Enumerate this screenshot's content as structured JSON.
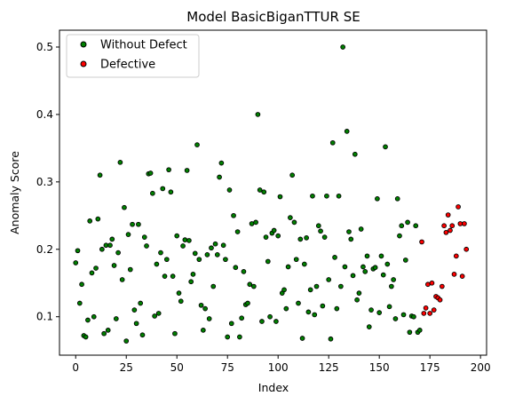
{
  "chart_data": {
    "type": "scatter",
    "title": "Model BasicBiganTTUR SE",
    "xlabel": "Index",
    "ylabel": "Anomaly Score",
    "xlim": [
      -8,
      203
    ],
    "ylim": [
      0.043,
      0.525
    ],
    "xticks": [
      0,
      25,
      50,
      75,
      100,
      125,
      150,
      175,
      200
    ],
    "yticks": [
      0.1,
      0.2,
      0.3,
      0.4,
      0.5
    ],
    "tick_labels_x": [
      "0",
      "25",
      "50",
      "75",
      "100",
      "125",
      "150",
      "175",
      "200"
    ],
    "tick_labels_y": [
      "0.1",
      "0.2",
      "0.3",
      "0.4",
      "0.5"
    ],
    "grid": false,
    "legend_position": "upper-left",
    "series": [
      {
        "name": "Without Defect",
        "color": "#008000",
        "edgecolor": "#000000",
        "x": [
          0,
          1,
          2,
          3,
          4,
          5,
          6,
          7,
          8,
          9,
          10,
          11,
          12,
          13,
          14,
          15,
          16,
          17,
          18,
          19,
          20,
          21,
          22,
          23,
          24,
          25,
          26,
          27,
          28,
          29,
          30,
          31,
          32,
          33,
          34,
          35,
          36,
          37,
          38,
          39,
          40,
          41,
          42,
          43,
          44,
          45,
          46,
          47,
          48,
          49,
          50,
          51,
          52,
          53,
          54,
          55,
          56,
          57,
          58,
          59,
          60,
          61,
          62,
          63,
          64,
          65,
          66,
          67,
          68,
          69,
          70,
          71,
          72,
          73,
          74,
          75,
          76,
          77,
          78,
          79,
          80,
          81,
          82,
          83,
          84,
          85,
          86,
          87,
          88,
          89,
          90,
          91,
          92,
          93,
          94,
          95,
          96,
          97,
          98,
          99,
          100,
          101,
          102,
          103,
          104,
          105,
          106,
          107,
          108,
          109,
          110,
          111,
          112,
          113,
          114,
          115,
          116,
          117,
          118,
          119,
          120,
          121,
          122,
          123,
          124,
          125,
          126,
          127,
          128,
          129,
          130,
          131,
          132,
          133,
          134,
          135,
          136,
          137,
          138,
          139,
          140,
          141,
          142,
          143,
          144,
          145,
          146,
          147,
          148,
          149,
          150,
          151,
          152,
          153,
          154,
          155,
          156,
          157,
          158,
          159,
          160,
          161,
          162,
          163,
          164,
          165,
          166,
          167,
          168,
          169,
          170
        ],
        "y": [
          0.18,
          0.198,
          0.12,
          0.148,
          0.072,
          0.07,
          0.095,
          0.242,
          0.165,
          0.1,
          0.172,
          0.245,
          0.31,
          0.2,
          0.075,
          0.206,
          0.08,
          0.206,
          0.215,
          0.176,
          0.097,
          0.195,
          0.329,
          0.155,
          0.262,
          0.064,
          0.222,
          0.17,
          0.237,
          0.11,
          0.09,
          0.237,
          0.12,
          0.073,
          0.218,
          0.205,
          0.312,
          0.313,
          0.283,
          0.101,
          0.178,
          0.105,
          0.195,
          0.29,
          0.16,
          0.185,
          0.318,
          0.285,
          0.16,
          0.075,
          0.22,
          0.135,
          0.123,
          0.205,
          0.214,
          0.317,
          0.213,
          0.152,
          0.163,
          0.194,
          0.355,
          0.185,
          0.117,
          0.08,
          0.112,
          0.192,
          0.097,
          0.202,
          0.145,
          0.208,
          0.192,
          0.307,
          0.328,
          0.206,
          0.185,
          0.07,
          0.288,
          0.09,
          0.25,
          0.173,
          0.226,
          0.07,
          0.098,
          0.167,
          0.118,
          0.12,
          0.148,
          0.238,
          0.145,
          0.24,
          0.4,
          0.288,
          0.093,
          0.285,
          0.218,
          0.182,
          0.1,
          0.224,
          0.228,
          0.093,
          0.22,
          0.278,
          0.135,
          0.14,
          0.112,
          0.174,
          0.247,
          0.31,
          0.24,
          0.185,
          0.12,
          0.215,
          0.068,
          0.178,
          0.217,
          0.107,
          0.14,
          0.279,
          0.103,
          0.145,
          0.235,
          0.227,
          0.116,
          0.218,
          0.279,
          0.155,
          0.067,
          0.358,
          0.188,
          0.112,
          0.279,
          0.145,
          0.5,
          0.174,
          0.375,
          0.226,
          0.215,
          0.161,
          0.341,
          0.125,
          0.135,
          0.23,
          0.174,
          0.167,
          0.19,
          0.085,
          0.11,
          0.171,
          0.173,
          0.275,
          0.106,
          0.19,
          0.162,
          0.352,
          0.178,
          0.115,
          0.145,
          0.155,
          0.097,
          0.275,
          0.22,
          0.235,
          0.103,
          0.184,
          0.24,
          0.077,
          0.101,
          0.1,
          0.235,
          0.077,
          0.08
        ]
      },
      {
        "name": "Defective",
        "color": "#ff0000",
        "edgecolor": "#000000",
        "x": [
          171,
          172,
          173,
          174,
          175,
          176,
          177,
          178,
          179,
          180,
          181,
          182,
          183,
          184,
          185,
          186,
          187,
          188,
          189,
          190,
          191,
          192,
          193
        ],
        "y": [
          0.211,
          0.105,
          0.113,
          0.148,
          0.105,
          0.15,
          0.11,
          0.13,
          0.128,
          0.125,
          0.145,
          0.235,
          0.225,
          0.251,
          0.228,
          0.235,
          0.163,
          0.19,
          0.263,
          0.238,
          0.16,
          0.238,
          0.2
        ]
      }
    ]
  }
}
